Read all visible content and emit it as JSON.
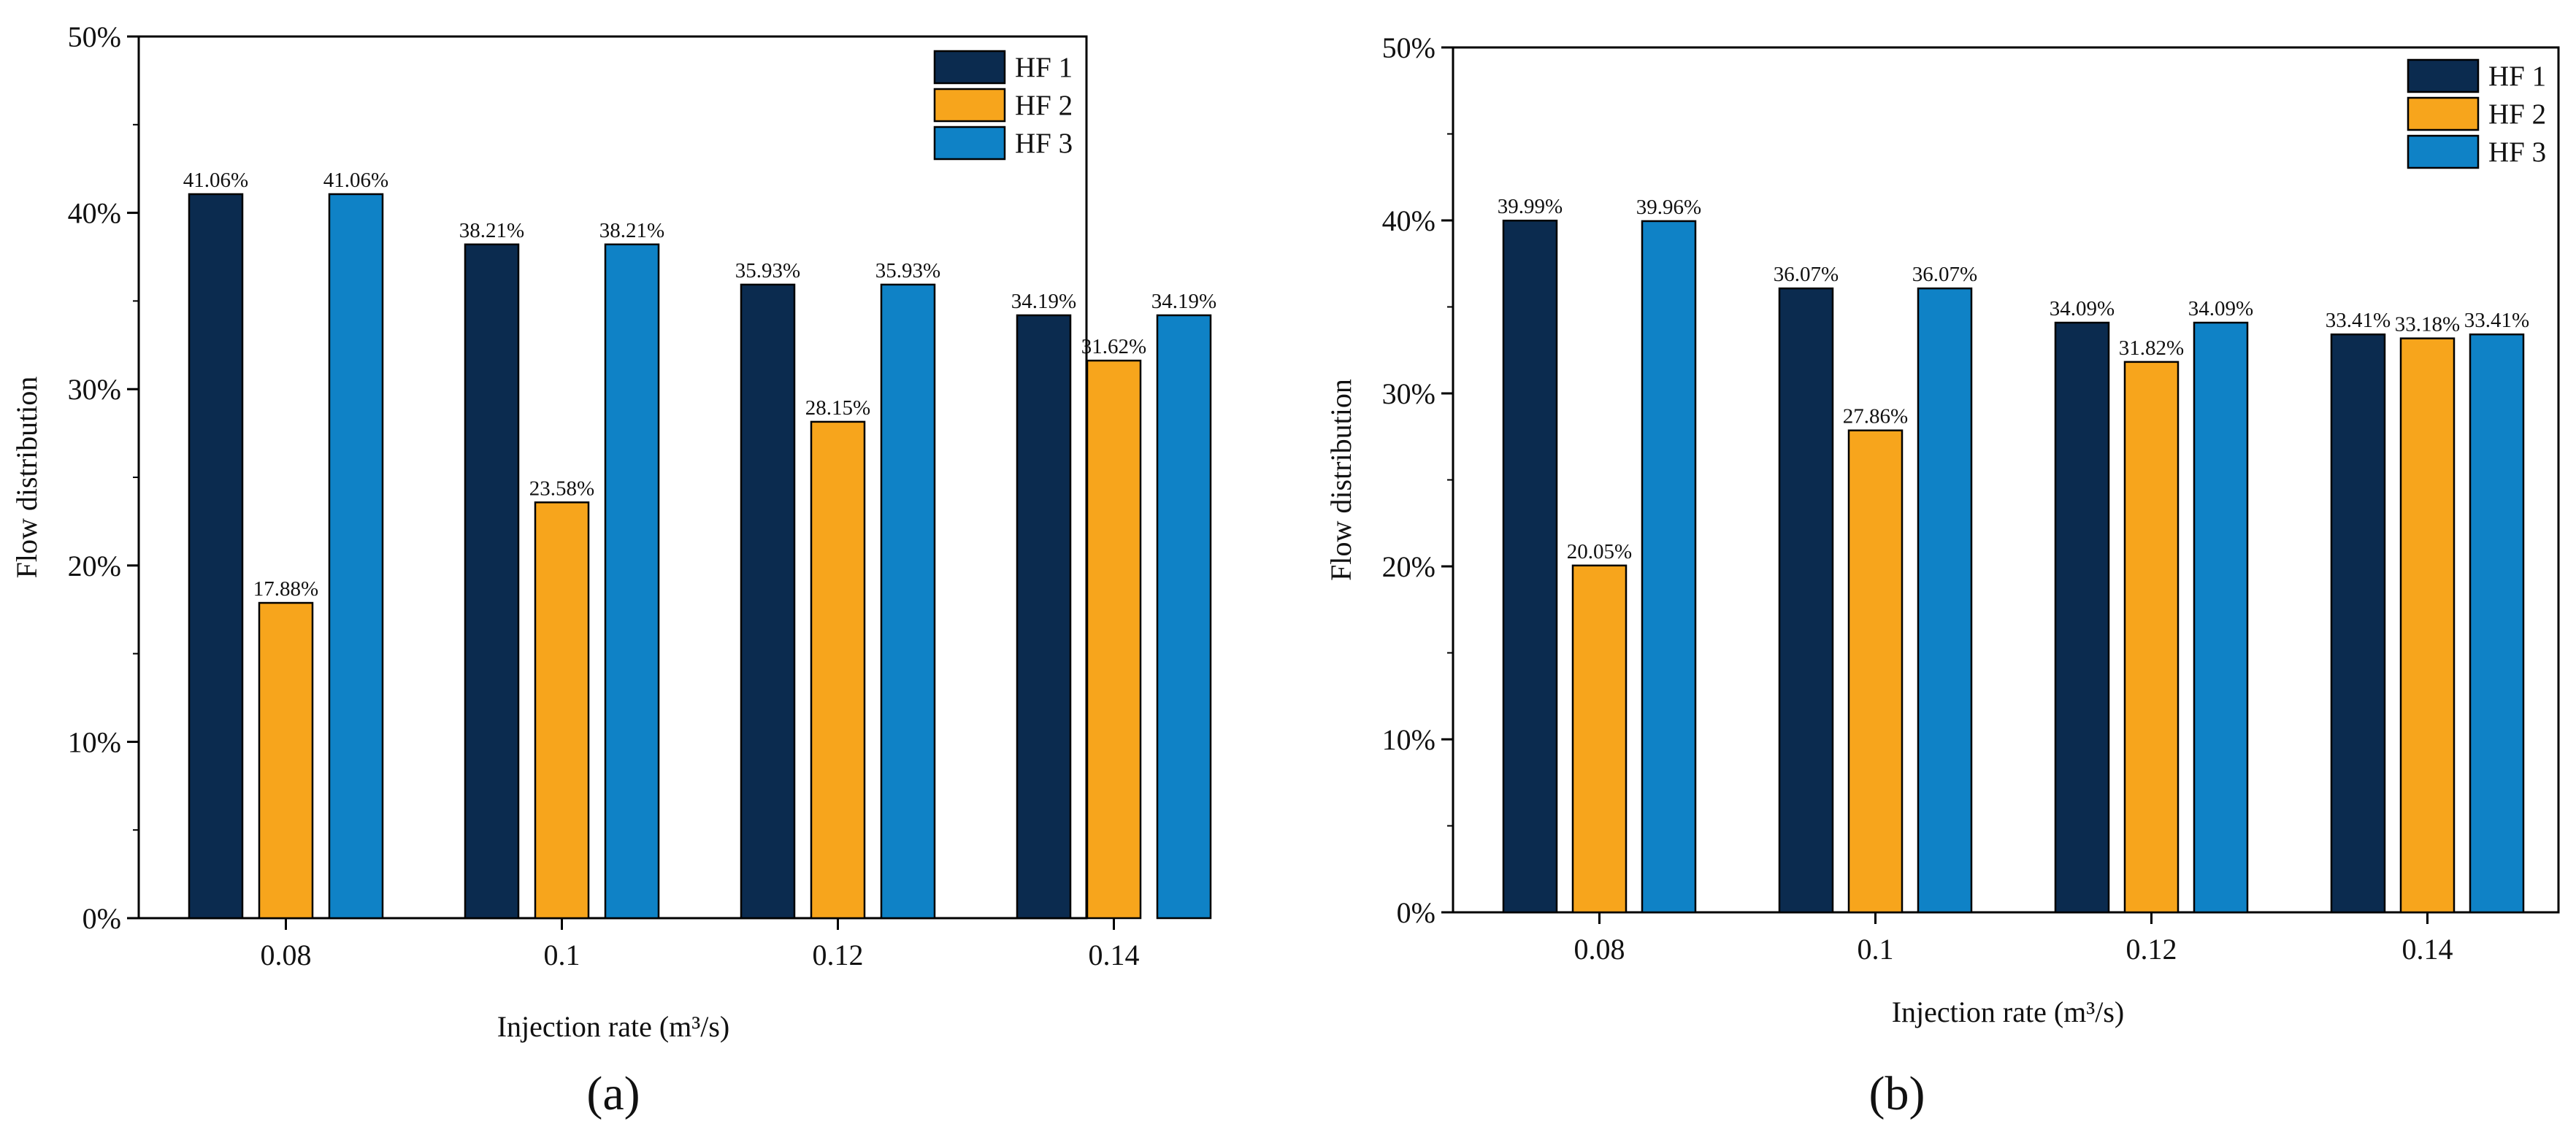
{
  "chart_data": [
    {
      "type": "bar",
      "panel_label": "(a)",
      "xlabel": "Injection rate (m³/s)",
      "ylabel": "Flow distribution",
      "categories": [
        "0.08",
        "0.1",
        "0.12",
        "0.14"
      ],
      "series": [
        {
          "name": "HF 1",
          "color": "#0b2b4f",
          "values": [
            41.06,
            38.21,
            35.93,
            34.19
          ],
          "labels": [
            "41.06%",
            "38.21%",
            "35.93%",
            "34.19%"
          ]
        },
        {
          "name": "HF 2",
          "color": "#f7a51c",
          "values": [
            17.88,
            23.58,
            28.15,
            31.62
          ],
          "labels": [
            "17.88%",
            "23.58%",
            "28.15%",
            "31.62%"
          ]
        },
        {
          "name": "HF 3",
          "color": "#0f82c6",
          "values": [
            41.06,
            38.21,
            35.93,
            34.19
          ],
          "labels": [
            "41.06%",
            "38.21%",
            "35.93%",
            "34.19%"
          ]
        }
      ],
      "ylim": [
        0,
        50
      ],
      "yticks": [
        0,
        10,
        20,
        30,
        40,
        50
      ],
      "ytick_labels": [
        "0%",
        "10%",
        "20%",
        "30%",
        "40%",
        "50%"
      ],
      "grid": false,
      "legend_position": "top-right"
    },
    {
      "type": "bar",
      "panel_label": "(b)",
      "xlabel": "Injection rate (m³/s)",
      "ylabel": "Flow distribution",
      "categories": [
        "0.08",
        "0.1",
        "0.12",
        "0.14"
      ],
      "series": [
        {
          "name": "HF 1",
          "color": "#0b2b4f",
          "values": [
            39.99,
            36.07,
            34.09,
            33.41
          ],
          "labels": [
            "39.99%",
            "36.07%",
            "34.09%",
            "33.41%"
          ]
        },
        {
          "name": "HF 2",
          "color": "#f7a51c",
          "values": [
            20.05,
            27.86,
            31.82,
            33.18
          ],
          "labels": [
            "20.05%",
            "27.86%",
            "31.82%",
            "33.18%"
          ]
        },
        {
          "name": "HF 3",
          "color": "#0f82c6",
          "values": [
            39.96,
            36.07,
            34.09,
            33.41
          ],
          "labels": [
            "39.96%",
            "36.07%",
            "34.09%",
            "33.41%"
          ]
        }
      ],
      "ylim": [
        0,
        50
      ],
      "yticks": [
        0,
        10,
        20,
        30,
        40,
        50
      ],
      "ytick_labels": [
        "0%",
        "10%",
        "20%",
        "30%",
        "40%",
        "50%"
      ],
      "grid": false,
      "legend_position": "top-right"
    }
  ]
}
